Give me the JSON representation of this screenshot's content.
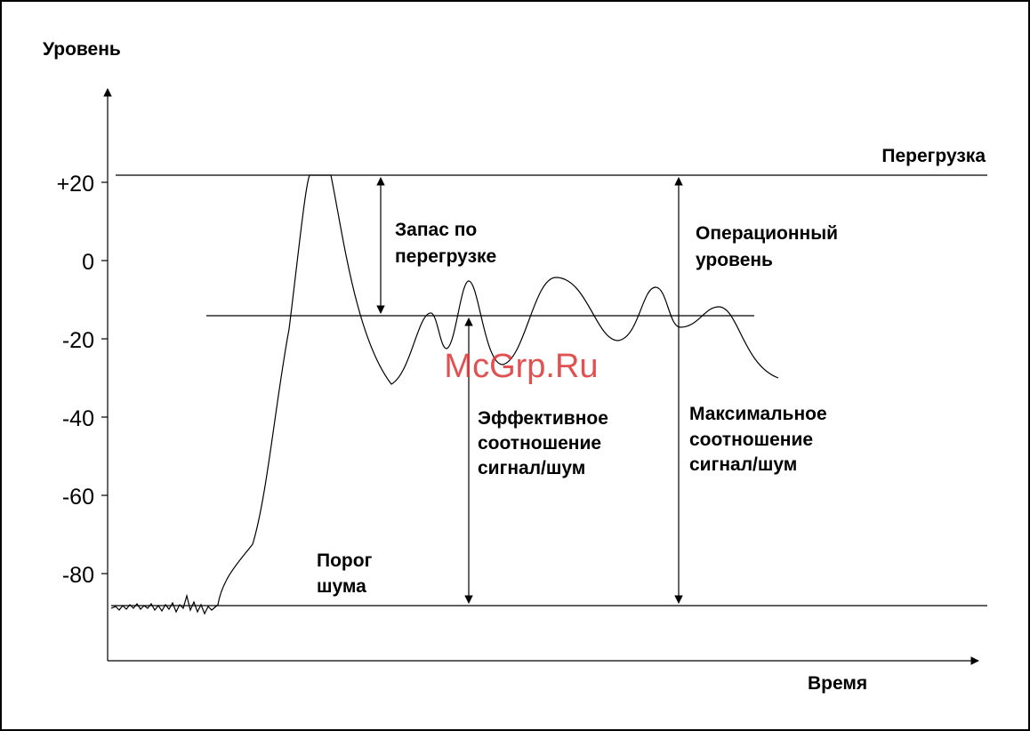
{
  "axes": {
    "y_label": "Уровень",
    "x_label": "Время",
    "y_ticks": [
      "+20",
      "0",
      "-20",
      "-40",
      "-60",
      "-80"
    ]
  },
  "annotations": {
    "overload": "Перегрузка",
    "headroom": [
      "Запас по",
      "перегрузке"
    ],
    "operating_level": [
      "Операционный",
      "уровень"
    ],
    "effective_snr": [
      "Эффективное",
      "соотношение",
      "сигнал/шум"
    ],
    "max_snr": [
      "Максимальное",
      "соотношение",
      "сигнал/шум"
    ],
    "noise_floor": [
      "Порог",
      "шума"
    ]
  },
  "watermark": "McGrp.Ru"
}
